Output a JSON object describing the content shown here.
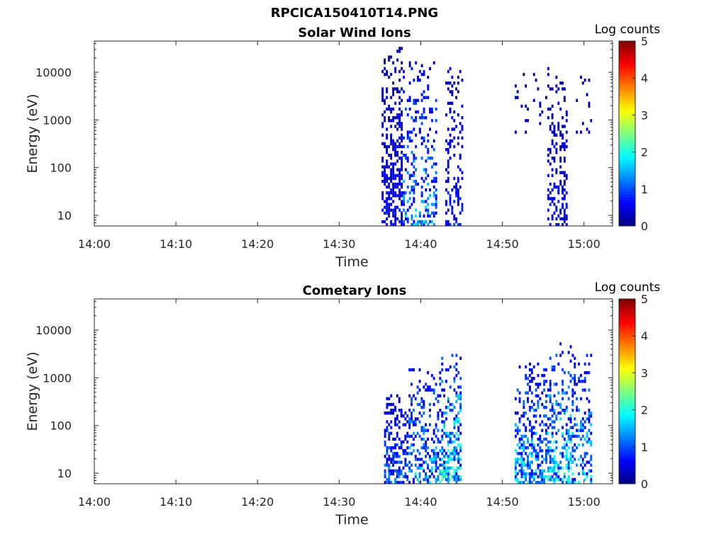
{
  "figure_title": "RPCICA150410T14.PNG",
  "chart_data": [
    {
      "type": "heatmap",
      "title": "Solar Wind Ions",
      "xlabel": "Time",
      "ylabel": "Energy (eV)",
      "x_ticks": [
        "14:00",
        "14:10",
        "14:20",
        "14:30",
        "14:40",
        "14:50",
        "15:00"
      ],
      "y_ticks": [
        "10",
        "100",
        "1000",
        "10000"
      ],
      "y_scale": "log",
      "ylim": [
        6,
        45000
      ],
      "xlim_minutes_after_14_00": [
        0,
        63.5
      ],
      "colorbar": {
        "label": "Log counts",
        "range": [
          0,
          5
        ],
        "ticks": [
          "0",
          "1",
          "2",
          "3",
          "4",
          "5"
        ],
        "colormap": "jet"
      },
      "bursts": [
        {
          "t_start": 35.2,
          "t_end": 37.8,
          "e_min": 6,
          "e_max": 30000,
          "density": 0.55,
          "mean_log_counts": 0.5
        },
        {
          "t_start": 37.8,
          "t_end": 42.0,
          "e_min": 6,
          "e_max": 15000,
          "density": 0.3,
          "mean_log_counts": 1.1
        },
        {
          "t_start": 43.0,
          "t_end": 45.2,
          "e_min": 6,
          "e_max": 14000,
          "density": 0.3,
          "mean_log_counts": 0.6
        },
        {
          "t_start": 51.5,
          "t_end": 56.5,
          "e_min": 300,
          "e_max": 14000,
          "density": 0.06,
          "mean_log_counts": 0.3
        },
        {
          "t_start": 55.5,
          "t_end": 58.0,
          "e_min": 6,
          "e_max": 12000,
          "density": 0.3,
          "mean_log_counts": 0.5
        },
        {
          "t_start": 59.0,
          "t_end": 61.0,
          "e_min": 500,
          "e_max": 9000,
          "density": 0.08,
          "mean_log_counts": 0.3
        }
      ]
    },
    {
      "type": "heatmap",
      "title": "Cometary Ions",
      "xlabel": "Time",
      "ylabel": "Energy (eV)",
      "x_ticks": [
        "14:00",
        "14:10",
        "14:20",
        "14:30",
        "14:40",
        "14:50",
        "15:00"
      ],
      "y_ticks": [
        "10",
        "100",
        "1000",
        "10000"
      ],
      "y_scale": "log",
      "ylim": [
        6,
        45000
      ],
      "xlim_minutes_after_14_00": [
        0,
        63.5
      ],
      "colorbar": {
        "label": "Log counts",
        "range": [
          0,
          5
        ],
        "ticks": [
          "0",
          "1",
          "2",
          "3",
          "4",
          "5"
        ],
        "colormap": "jet"
      },
      "bursts": [
        {
          "t_start": 35.5,
          "t_end": 38.5,
          "e_min": 6,
          "e_max": 400,
          "density": 0.55,
          "mean_log_counts": 0.9
        },
        {
          "t_start": 38.5,
          "t_end": 42.5,
          "e_min": 6,
          "e_max": 1500,
          "density": 0.4,
          "mean_log_counts": 1.2
        },
        {
          "t_start": 42.5,
          "t_end": 45.0,
          "e_min": 6,
          "e_max": 3000,
          "density": 0.45,
          "mean_log_counts": 1.6
        },
        {
          "t_start": 51.5,
          "t_end": 55.5,
          "e_min": 6,
          "e_max": 2000,
          "density": 0.45,
          "mean_log_counts": 1.3
        },
        {
          "t_start": 55.5,
          "t_end": 58.5,
          "e_min": 6,
          "e_max": 5000,
          "density": 0.45,
          "mean_log_counts": 1.5
        },
        {
          "t_start": 58.5,
          "t_end": 61.0,
          "e_min": 6,
          "e_max": 3000,
          "density": 0.4,
          "mean_log_counts": 1.3
        }
      ]
    }
  ]
}
